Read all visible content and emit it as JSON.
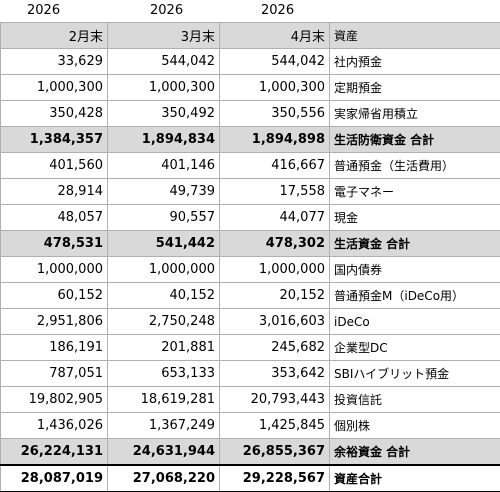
{
  "header": {
    "years": [
      "2026",
      "2026",
      "2026"
    ]
  },
  "table": {
    "header": [
      "2月末",
      "3月末",
      "4月末",
      "資産"
    ],
    "rows": [
      [
        "33,629",
        "544,042",
        "544,042",
        "社内預金"
      ],
      [
        "1,000,300",
        "1,000,300",
        "1,000,300",
        "定期預金"
      ],
      [
        "350,428",
        "350,492",
        "350,556",
        "実家帰省用積立"
      ],
      [
        "1,384,357",
        "1,894,834",
        "1,894,898",
        "生活防衛資金 合計"
      ],
      [
        "401,560",
        "401,146",
        "416,667",
        "普通預金（生活費用）"
      ],
      [
        "28,914",
        "49,739",
        "17,558",
        "電子マネー"
      ],
      [
        "48,057",
        "90,557",
        "44,077",
        "現金"
      ],
      [
        "478,531",
        "541,442",
        "478,302",
        "生活資金 合計"
      ],
      [
        "1,000,000",
        "1,000,000",
        "1,000,000",
        "国内債券"
      ],
      [
        "60,152",
        "40,152",
        "20,152",
        "普通預金M（iDeCo用）"
      ],
      [
        "2,951,806",
        "2,750,248",
        "3,016,603",
        "iDeCo"
      ],
      [
        "186,191",
        "201,881",
        "245,682",
        "企業型DC"
      ],
      [
        "787,051",
        "653,133",
        "353,642",
        "SBIハイブリット預金"
      ],
      [
        "19,802,905",
        "18,619,281",
        "20,793,443",
        "投資信託"
      ],
      [
        "1,436,026",
        "1,367,249",
        "1,425,845",
        "個別株"
      ],
      [
        "26,224,131",
        "24,631,944",
        "26,855,367",
        "余裕資金 合計"
      ],
      [
        "28,087,019",
        "27,068,220",
        "29,228,567",
        "資産合計"
      ]
    ]
  }
}
